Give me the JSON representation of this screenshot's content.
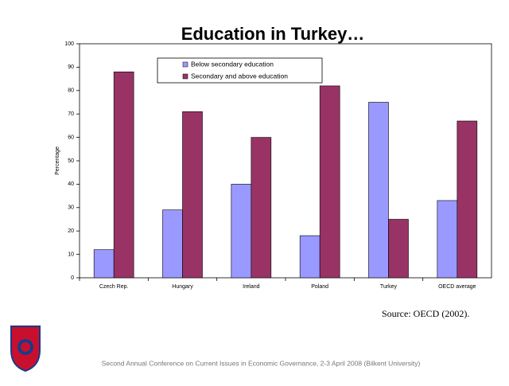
{
  "chart_data": {
    "type": "bar",
    "title": "Education in Turkey…",
    "y_label": "Percentage",
    "categories": [
      "Czech Rep.",
      "Hungary",
      "Ireland",
      "Poland",
      "Turkey",
      "OECD average"
    ],
    "series": [
      {
        "name": "Below secondary education",
        "color": "#9999ff",
        "values": [
          12,
          29,
          40,
          18,
          75,
          33
        ]
      },
      {
        "name": "Secondary and above education",
        "color": "#993366",
        "values": [
          88,
          71,
          60,
          82,
          25,
          67
        ]
      }
    ],
    "ylim": [
      0,
      100
    ],
    "yticks": [
      0,
      10,
      20,
      30,
      40,
      50,
      60,
      70,
      80,
      90,
      100
    ],
    "grid": false,
    "legend": "top"
  },
  "source": "Source: OECD (2002).",
  "footer": "Second Annual Conference on Current Issues in  Economic Governance, 2-3 April 2008 (Bilkent University)"
}
